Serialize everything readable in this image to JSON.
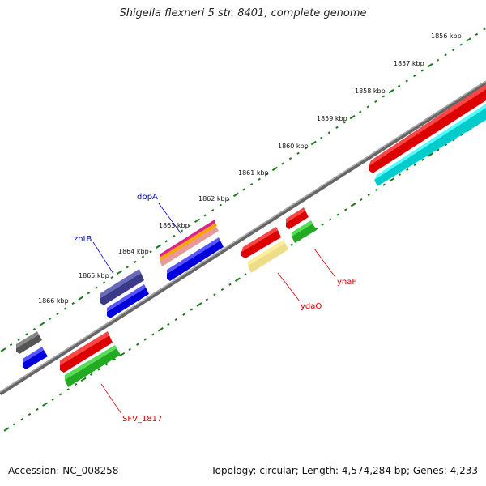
{
  "title": "Shigella flexneri 5 str. 8401, complete genome",
  "accession": "Accession: NC_008258",
  "summary": "Topology: circular; Length: 4,574,284 bp; Genes: 4,233",
  "colors": {
    "backbone": "#777777",
    "ticks": "#1a7a1a",
    "label_blue": "#0000cc",
    "label_red": "#cc0000"
  },
  "scale_labels": [
    "1856 kbp",
    "1857 kbp",
    "1858 kbp",
    "1859 kbp",
    "1860 kbp",
    "1861 kbp",
    "1862 kbp",
    "1863 kbp",
    "1864 kbp",
    "1865 kbp",
    "1866 kbp"
  ],
  "gene_labels": [
    {
      "text": "dbpA",
      "color": "#0000cc"
    },
    {
      "text": "zntB",
      "color": "#0000cc"
    },
    {
      "text": "ynaF",
      "color": "#cc0000"
    },
    {
      "text": "ydaO",
      "color": "#cc0000"
    },
    {
      "text": "SFV_1817",
      "color": "#cc0000"
    }
  ]
}
